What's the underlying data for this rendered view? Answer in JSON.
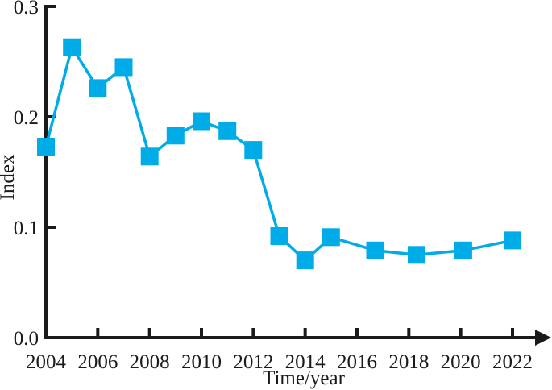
{
  "figure": {
    "background_color": "#ffffff",
    "text_color": "#1a1a1a"
  },
  "chart_data": {
    "type": "line",
    "title": "",
    "xlabel": "Time/year",
    "ylabel": "Index",
    "xlim": [
      2004,
      2022
    ],
    "ylim": [
      0.0,
      0.3
    ],
    "x_ticks": [
      2004,
      2006,
      2008,
      2010,
      2012,
      2014,
      2016,
      2018,
      2020,
      2022
    ],
    "y_tick_labels": [
      "0.0",
      "0.1",
      "0.2",
      "0.3"
    ],
    "grid": false,
    "legend": false,
    "x_axis_arrow": true,
    "axis_color": "#1a1a1a",
    "x": [
      2004,
      2005,
      2006,
      2007,
      2008,
      2009,
      2010,
      2011,
      2012,
      2013,
      2014,
      2015,
      2016.7,
      2018.3,
      2020.1,
      2022
    ],
    "series": [
      {
        "name": "Index",
        "color": "#00ACE8",
        "marker": "square",
        "values": [
          0.173,
          0.263,
          0.226,
          0.245,
          0.164,
          0.183,
          0.196,
          0.187,
          0.17,
          0.092,
          0.07,
          0.091,
          0.079,
          0.075,
          0.079,
          0.088
        ]
      }
    ]
  }
}
